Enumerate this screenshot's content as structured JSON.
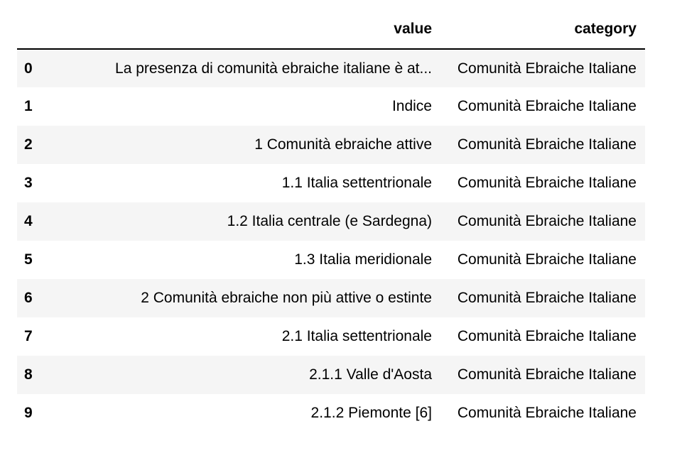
{
  "table": {
    "columns": [
      "",
      "value",
      "category"
    ],
    "rows": [
      {
        "index": "0",
        "value": "La presenza di comunità ebraiche italiane è at...",
        "category": "Comunità Ebraiche Italiane"
      },
      {
        "index": "1",
        "value": "Indice",
        "category": "Comunità Ebraiche Italiane"
      },
      {
        "index": "2",
        "value": "1 Comunità ebraiche attive",
        "category": "Comunità Ebraiche Italiane"
      },
      {
        "index": "3",
        "value": "1.1 Italia settentrionale",
        "category": "Comunità Ebraiche Italiane"
      },
      {
        "index": "4",
        "value": "1.2 Italia centrale (e Sardegna)",
        "category": "Comunità Ebraiche Italiane"
      },
      {
        "index": "5",
        "value": "1.3 Italia meridionale",
        "category": "Comunità Ebraiche Italiane"
      },
      {
        "index": "6",
        "value": "2 Comunità ebraiche non più attive o estinte",
        "category": "Comunità Ebraiche Italiane"
      },
      {
        "index": "7",
        "value": "2.1 Italia settentrionale",
        "category": "Comunità Ebraiche Italiane"
      },
      {
        "index": "8",
        "value": "2.1.1 Valle d'Aosta",
        "category": "Comunità Ebraiche Italiane"
      },
      {
        "index": "9",
        "value": "2.1.2 Piemonte [6]",
        "category": "Comunità Ebraiche Italiane"
      }
    ]
  },
  "colors": {
    "stripe": "#f5f5f5",
    "header_rule": "#000000"
  }
}
